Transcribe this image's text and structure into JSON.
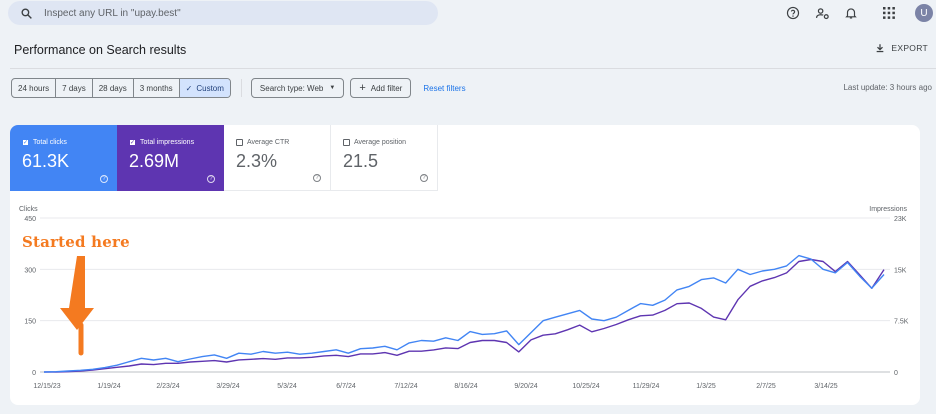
{
  "search": {
    "placeholder": "Inspect any URL in \"upay.best\""
  },
  "topbar": {
    "icons": [
      "help-icon",
      "manage-users-icon",
      "notifications-icon",
      "apps-grid-icon"
    ],
    "avatar_letter": "U"
  },
  "header": {
    "title": "Performance on Search results",
    "export_label": "EXPORT"
  },
  "filters": {
    "ranges": [
      {
        "label": "24 hours",
        "active": false
      },
      {
        "label": "7 days",
        "active": false
      },
      {
        "label": "28 days",
        "active": false
      },
      {
        "label": "3 months",
        "active": false
      },
      {
        "label": "Custom",
        "active": true
      }
    ],
    "search_type": "Search type: Web",
    "add_filter": "Add filter",
    "reset": "Reset filters",
    "last_update": "Last update: 3 hours ago"
  },
  "metrics": [
    {
      "label": "Total clicks",
      "value": "61.3K",
      "checked": true,
      "color": "#4285f4"
    },
    {
      "label": "Total impressions",
      "value": "2.69M",
      "checked": true,
      "color": "#5e35b1"
    },
    {
      "label": "Average CTR",
      "value": "2.3%",
      "checked": false
    },
    {
      "label": "Average position",
      "value": "21.5",
      "checked": false
    }
  ],
  "annotation": {
    "text": "Started here",
    "color": "#f47a20"
  },
  "chart_data": {
    "type": "line",
    "left_axis": {
      "title": "Clicks",
      "ticks": [
        "450",
        "300",
        "150",
        "0"
      ],
      "ylim": [
        0,
        450
      ]
    },
    "right_axis": {
      "title": "Impressions",
      "ticks": [
        "23K",
        "15K",
        "7.5K",
        "0"
      ],
      "ylim": [
        0,
        23000
      ]
    },
    "x_ticks": [
      "12/15/23",
      "1/19/24",
      "2/23/24",
      "3/29/24",
      "5/3/24",
      "6/7/24",
      "7/12/24",
      "8/16/24",
      "9/20/24",
      "10/25/24",
      "11/29/24",
      "1/3/25",
      "2/7/25",
      "3/14/25"
    ],
    "grid": true,
    "series": [
      {
        "name": "Total clicks",
        "color": "#4285f4",
        "axis": "left",
        "values": [
          0,
          1,
          3,
          5,
          8,
          13,
          20,
          30,
          40,
          35,
          40,
          30,
          38,
          45,
          50,
          40,
          55,
          52,
          60,
          55,
          58,
          52,
          55,
          60,
          65,
          55,
          68,
          70,
          75,
          65,
          85,
          92,
          90,
          100,
          92,
          118,
          110,
          112,
          120,
          80,
          115,
          150,
          160,
          170,
          180,
          155,
          150,
          160,
          180,
          200,
          195,
          210,
          240,
          250,
          270,
          275,
          260,
          300,
          285,
          295,
          300,
          310,
          340,
          330,
          300,
          290,
          320,
          280,
          245,
          285
        ]
      },
      {
        "name": "Total impressions",
        "color": "#5e35b1",
        "axis": "right",
        "values": [
          0,
          0,
          50,
          150,
          300,
          500,
          700,
          900,
          1200,
          1100,
          1300,
          1300,
          1500,
          1600,
          1700,
          1500,
          1800,
          1900,
          2000,
          1900,
          2100,
          2100,
          2200,
          2400,
          2500,
          2300,
          2700,
          2700,
          2900,
          2500,
          3100,
          3100,
          3300,
          3600,
          3500,
          4400,
          4700,
          4700,
          4400,
          3000,
          4800,
          5500,
          5700,
          6300,
          7000,
          6000,
          6500,
          7100,
          7800,
          8400,
          8500,
          9200,
          10200,
          10300,
          9500,
          8200,
          7800,
          10800,
          12800,
          13600,
          14100,
          14800,
          16500,
          16800,
          16500,
          15000,
          16500,
          14500,
          12500,
          15300
        ]
      }
    ]
  }
}
